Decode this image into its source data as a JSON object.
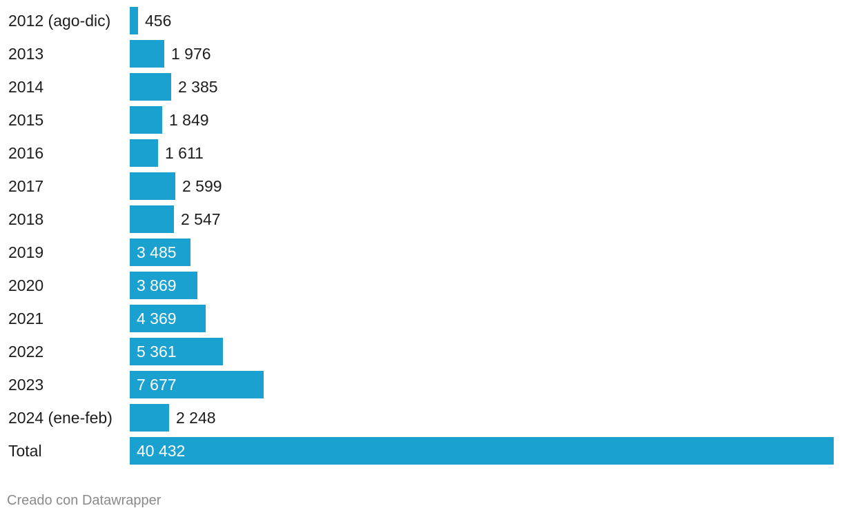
{
  "chart_data": {
    "type": "bar",
    "orientation": "horizontal",
    "categories": [
      "2012 (ago-dic)",
      "2013",
      "2014",
      "2015",
      "2016",
      "2017",
      "2018",
      "2019",
      "2020",
      "2021",
      "2022",
      "2023",
      "2024 (ene-feb)",
      "Total"
    ],
    "values": [
      456,
      1976,
      2385,
      1849,
      1611,
      2599,
      2547,
      3485,
      3869,
      4369,
      5361,
      7677,
      2248,
      40432
    ],
    "value_labels": [
      "456",
      "1 976",
      "2 385",
      "1 849",
      "1 611",
      "2 599",
      "2 547",
      "3 485",
      "3 869",
      "4 369",
      "5 361",
      "7 677",
      "2 248",
      "40 432"
    ],
    "xlim": [
      0,
      40432
    ],
    "grid": false,
    "legend": "none"
  },
  "colors": {
    "bar": "#1aa1cf",
    "label_outside": "#1d1d1d",
    "label_inside": "#ffffff",
    "credit": "#8a8a8a"
  },
  "credit": "Creado con Datawrapper"
}
